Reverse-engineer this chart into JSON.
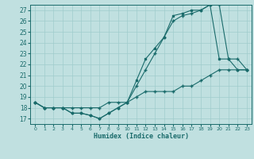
{
  "title": "",
  "xlabel": "Humidex (Indice chaleur)",
  "bg_color": "#c0e0e0",
  "grid_color": "#a0cccc",
  "line_color": "#1a6b6b",
  "xlim": [
    -0.5,
    23.5
  ],
  "ylim": [
    16.5,
    27.5
  ],
  "yticks": [
    17,
    18,
    19,
    20,
    21,
    22,
    23,
    24,
    25,
    26,
    27
  ],
  "xticks": [
    0,
    1,
    2,
    3,
    4,
    5,
    6,
    7,
    8,
    9,
    10,
    11,
    12,
    13,
    14,
    15,
    16,
    17,
    18,
    19,
    20,
    21,
    22,
    23
  ],
  "series1_x": [
    0,
    1,
    2,
    3,
    4,
    5,
    6,
    7,
    8,
    9,
    10,
    11,
    12,
    13,
    14,
    15,
    16,
    17,
    18,
    19,
    20,
    21,
    22,
    23
  ],
  "series1_y": [
    18.5,
    18.0,
    18.0,
    18.0,
    17.5,
    17.5,
    17.3,
    17.0,
    17.5,
    18.0,
    18.5,
    20.5,
    22.5,
    23.5,
    24.5,
    26.5,
    26.7,
    27.0,
    27.0,
    27.5,
    22.5,
    22.5,
    21.5,
    21.5
  ],
  "series2_x": [
    0,
    1,
    2,
    3,
    4,
    5,
    6,
    7,
    8,
    9,
    10,
    11,
    12,
    13,
    14,
    15,
    16,
    17,
    18,
    19,
    20,
    21,
    22,
    23
  ],
  "series2_y": [
    18.5,
    18.0,
    18.0,
    18.0,
    17.5,
    17.5,
    17.3,
    17.0,
    17.5,
    18.0,
    18.5,
    20.0,
    21.5,
    23.0,
    24.5,
    26.0,
    26.5,
    26.7,
    27.0,
    27.5,
    27.5,
    22.5,
    22.5,
    21.5
  ],
  "series3_x": [
    0,
    1,
    2,
    3,
    4,
    5,
    6,
    7,
    8,
    9,
    10,
    11,
    12,
    13,
    14,
    15,
    16,
    17,
    18,
    19,
    20,
    21,
    22,
    23
  ],
  "series3_y": [
    18.5,
    18.0,
    18.0,
    18.0,
    18.0,
    18.0,
    18.0,
    18.0,
    18.5,
    18.5,
    18.5,
    19.0,
    19.5,
    19.5,
    19.5,
    19.5,
    20.0,
    20.0,
    20.5,
    21.0,
    21.5,
    21.5,
    21.5,
    21.5
  ]
}
